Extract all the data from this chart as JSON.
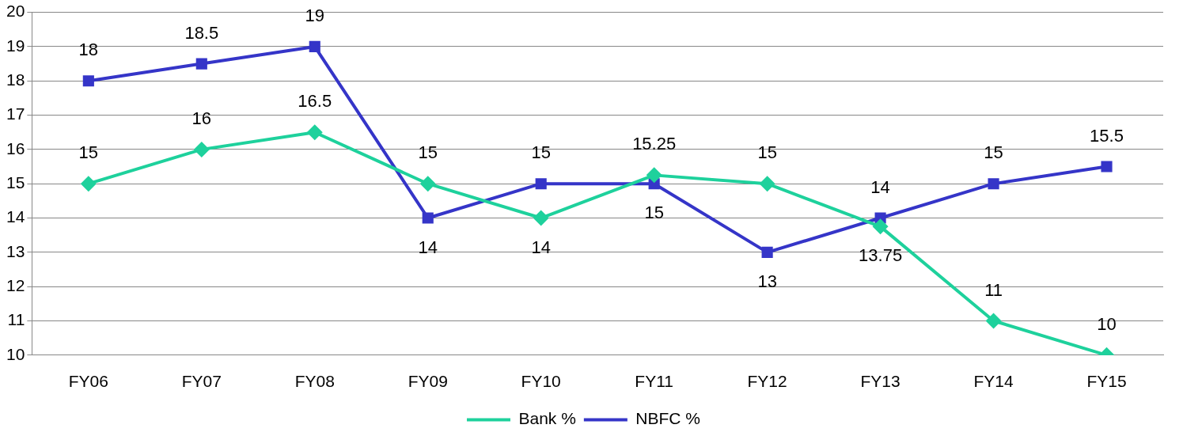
{
  "chart_data": {
    "type": "line",
    "categories": [
      "FY06",
      "FY07",
      "FY08",
      "FY09",
      "FY10",
      "FY11",
      "FY12",
      "FY13",
      "FY14",
      "FY15"
    ],
    "series": [
      {
        "name": "Bank %",
        "color": "#1ed19c",
        "marker": "diamond",
        "values": [
          15,
          16,
          16.5,
          15,
          14,
          15.25,
          15,
          13.75,
          11,
          10
        ]
      },
      {
        "name": "NBFC %",
        "color": "#3535c8",
        "marker": "square",
        "values": [
          18,
          18.5,
          19,
          14,
          15,
          15,
          13,
          14,
          15,
          15.5
        ]
      }
    ],
    "ylim": [
      10,
      20
    ],
    "yticks": [
      10,
      11,
      12,
      13,
      14,
      15,
      16,
      17,
      18,
      19,
      20
    ],
    "grid": "y",
    "legend": "bottom",
    "data_labels": true,
    "line_style": "solid"
  }
}
